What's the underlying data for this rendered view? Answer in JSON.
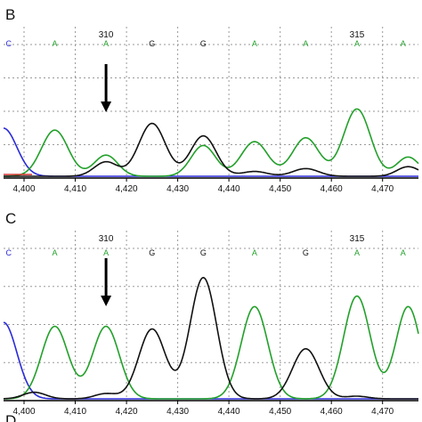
{
  "colors": {
    "A": "#22a02a",
    "G": "#111111",
    "C": "#2a2ad8",
    "T": "#d03030",
    "arrow": "#000000",
    "grid": "#9a9a9a"
  },
  "chart_data": [
    {
      "type": "line",
      "panel": "B",
      "xlim": [
        4396,
        4477
      ],
      "x_ticks": [
        4400,
        4410,
        4420,
        4430,
        4440,
        4450,
        4460,
        4470
      ],
      "x_tick_labels": [
        "4,400",
        "4,410",
        "4,420",
        "4,430",
        "4,440",
        "4,450",
        "4,460",
        "4,470"
      ],
      "position_labels": [
        {
          "text": "310",
          "x": 4416
        },
        {
          "text": "315",
          "x": 4465
        }
      ],
      "base_calls": [
        {
          "base": "C",
          "x": 4397
        },
        {
          "base": "A",
          "x": 4406
        },
        {
          "base": "A",
          "x": 4416
        },
        {
          "base": "G",
          "x": 4425
        },
        {
          "base": "G",
          "x": 4435
        },
        {
          "base": "A",
          "x": 4445
        },
        {
          "base": "A",
          "x": 4455
        },
        {
          "base": "A",
          "x": 4465
        },
        {
          "base": "A",
          "x": 4474
        }
      ],
      "arrow_x": 4416,
      "ylim": [
        0,
        1
      ],
      "series": [
        {
          "channel": "C",
          "peaks": [
            {
              "x": 4396,
              "h": 0.5,
              "w": 2.6
            }
          ]
        },
        {
          "channel": "A",
          "peaks": [
            {
              "x": 4406,
              "h": 0.48,
              "w": 2.6
            },
            {
              "x": 4416,
              "h": 0.22,
              "w": 2.3
            },
            {
              "x": 4435,
              "h": 0.32,
              "w": 2.4
            },
            {
              "x": 4445,
              "h": 0.36,
              "w": 2.6
            },
            {
              "x": 4455,
              "h": 0.4,
              "w": 2.6
            },
            {
              "x": 4465,
              "h": 0.7,
              "w": 2.6
            },
            {
              "x": 4475,
              "h": 0.2,
              "w": 2.2
            }
          ]
        },
        {
          "channel": "G",
          "peaks": [
            {
              "x": 4416,
              "h": 0.15,
              "w": 2.3
            },
            {
              "x": 4425,
              "h": 0.55,
              "w": 2.6
            },
            {
              "x": 4435,
              "h": 0.42,
              "w": 2.5
            },
            {
              "x": 4445,
              "h": 0.05,
              "w": 2.5
            },
            {
              "x": 4455,
              "h": 0.08,
              "w": 2.5
            },
            {
              "x": 4475,
              "h": 0.1,
              "w": 2.2
            }
          ]
        }
      ]
    },
    {
      "type": "line",
      "panel": "C",
      "xlim": [
        4396,
        4477
      ],
      "x_ticks": [
        4400,
        4410,
        4420,
        4430,
        4440,
        4450,
        4460,
        4470
      ],
      "x_tick_labels": [
        "4,400",
        "4,410",
        "4,420",
        "4,430",
        "4,440",
        "4,450",
        "4,460",
        "4,470"
      ],
      "position_labels": [
        {
          "text": "310",
          "x": 4416
        },
        {
          "text": "315",
          "x": 4465
        }
      ],
      "base_calls": [
        {
          "base": "C",
          "x": 4397
        },
        {
          "base": "A",
          "x": 4406
        },
        {
          "base": "A",
          "x": 4416
        },
        {
          "base": "G",
          "x": 4425
        },
        {
          "base": "G",
          "x": 4435
        },
        {
          "base": "A",
          "x": 4445
        },
        {
          "base": "G",
          "x": 4455
        },
        {
          "base": "A",
          "x": 4465
        },
        {
          "base": "A",
          "x": 4474
        }
      ],
      "arrow_x": 4416,
      "ylim": [
        0,
        1
      ],
      "series": [
        {
          "channel": "C",
          "peaks": [
            {
              "x": 4396,
              "h": 0.58,
              "w": 2.6
            }
          ]
        },
        {
          "channel": "A",
          "peaks": [
            {
              "x": 4406,
              "h": 0.55,
              "w": 2.6
            },
            {
              "x": 4416,
              "h": 0.55,
              "w": 2.6
            },
            {
              "x": 4445,
              "h": 0.7,
              "w": 2.6
            },
            {
              "x": 4465,
              "h": 0.78,
              "w": 2.6
            },
            {
              "x": 4475,
              "h": 0.7,
              "w": 2.4
            }
          ]
        },
        {
          "channel": "G",
          "peaks": [
            {
              "x": 4402,
              "h": 0.05,
              "w": 2.2
            },
            {
              "x": 4416,
              "h": 0.04,
              "w": 2.2
            },
            {
              "x": 4425,
              "h": 0.53,
              "w": 2.6
            },
            {
              "x": 4435,
              "h": 0.92,
              "w": 2.6
            },
            {
              "x": 4455,
              "h": 0.38,
              "w": 2.6
            },
            {
              "x": 4465,
              "h": 0.02,
              "w": 2.2
            }
          ]
        }
      ]
    }
  ],
  "footer": {
    "partial_letter": "D"
  }
}
